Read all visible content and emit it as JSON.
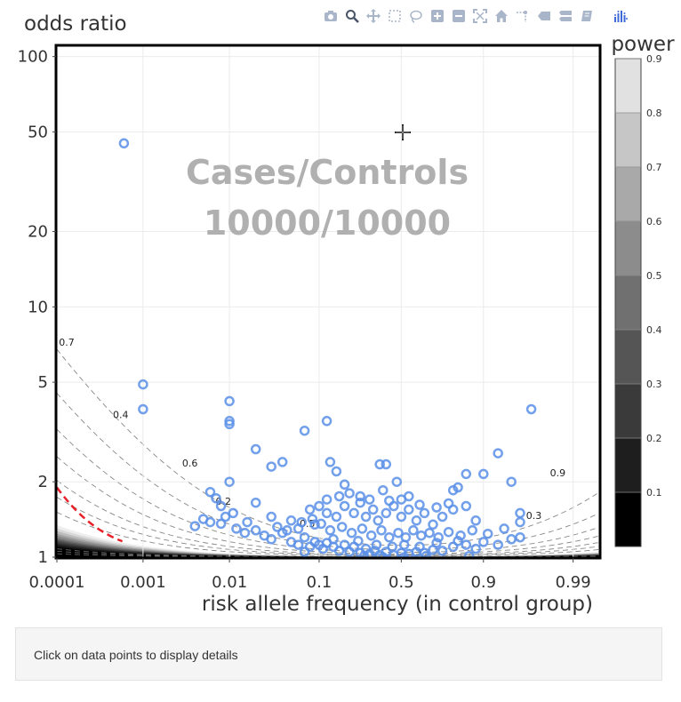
{
  "chart_data": {
    "type": "scatter",
    "title": "",
    "annotation_lines": [
      "Cases/Controls",
      "10000/10000"
    ],
    "xlabel": "risk allele frequency (in control group)",
    "ylabel": "odds ratio",
    "x_scale": "logit",
    "y_scale": "log",
    "x_ticks": [
      0.0001,
      0.001,
      0.01,
      0.1,
      0.5,
      0.9,
      0.99
    ],
    "x_tick_labels": [
      "0.0001",
      "0.001",
      "0.01",
      "0.1",
      "0.5",
      "0.9",
      "0.99"
    ],
    "y_ticks": [
      1,
      2,
      5,
      10,
      20,
      50,
      100
    ],
    "y_tick_labels": [
      "1",
      "2",
      "5",
      "10",
      "20",
      "50",
      "100"
    ],
    "xlim": [
      0.0001,
      0.995
    ],
    "ylim": [
      1,
      110
    ],
    "grid": true,
    "colorbar": {
      "title": "power",
      "ticks": [
        0.1,
        0.2,
        0.3,
        0.4,
        0.5,
        0.6,
        0.7,
        0.8,
        0.9
      ],
      "tick_labels": [
        "0.1",
        "0.2",
        "0.3",
        "0.4",
        "0.5",
        "0.6",
        "0.7",
        "0.8",
        "0.9"
      ]
    },
    "contour_labels": [
      {
        "text": "0.7",
        "x": 0.00013,
        "y": 7.0
      },
      {
        "text": "0.4",
        "x": 0.00055,
        "y": 3.6
      },
      {
        "text": "0.6",
        "x": 0.0035,
        "y": 2.3
      },
      {
        "text": "0.2",
        "x": 0.0085,
        "y": 1.62
      },
      {
        "text": "0.5",
        "x": 0.075,
        "y": 1.32
      },
      {
        "text": "0.9",
        "x": 0.985,
        "y": 2.1
      },
      {
        "text": "0.3",
        "x": 0.972,
        "y": 1.42
      }
    ],
    "reference_line": {
      "name": "",
      "color": "#e8202a"
    },
    "series": [
      {
        "name": "",
        "color": "#5b8fe8",
        "points": [
          [
            0.0006,
            45
          ],
          [
            0.001,
            4.9
          ],
          [
            0.001,
            3.9
          ],
          [
            0.01,
            4.2
          ],
          [
            0.01,
            3.5
          ],
          [
            0.01,
            3.4
          ],
          [
            0.01,
            2.0
          ],
          [
            0.02,
            2.7
          ],
          [
            0.03,
            2.3
          ],
          [
            0.04,
            2.4
          ],
          [
            0.07,
            3.2
          ],
          [
            0.12,
            3.5
          ],
          [
            0.13,
            2.4
          ],
          [
            0.15,
            2.2
          ],
          [
            0.18,
            1.95
          ],
          [
            0.36,
            2.35
          ],
          [
            0.4,
            2.35
          ],
          [
            0.47,
            2.0
          ],
          [
            0.38,
            1.85
          ],
          [
            0.55,
            1.75
          ],
          [
            0.25,
            1.75
          ],
          [
            0.2,
            1.8
          ],
          [
            0.97,
            3.9
          ],
          [
            0.93,
            2.6
          ],
          [
            0.85,
            2.15
          ],
          [
            0.82,
            1.9
          ],
          [
            0.8,
            1.85
          ],
          [
            0.9,
            2.15
          ],
          [
            0.95,
            2.0
          ],
          [
            0.96,
            1.5
          ],
          [
            0.96,
            1.38
          ],
          [
            0.006,
            1.82
          ],
          [
            0.007,
            1.72
          ],
          [
            0.008,
            1.6
          ],
          [
            0.011,
            1.5
          ],
          [
            0.02,
            1.65
          ],
          [
            0.005,
            1.42
          ],
          [
            0.006,
            1.38
          ],
          [
            0.008,
            1.36
          ],
          [
            0.012,
            1.3
          ],
          [
            0.015,
            1.25
          ],
          [
            0.02,
            1.28
          ],
          [
            0.025,
            1.22
          ],
          [
            0.03,
            1.18
          ],
          [
            0.04,
            1.25
          ],
          [
            0.05,
            1.15
          ],
          [
            0.06,
            1.12
          ],
          [
            0.07,
            1.2
          ],
          [
            0.08,
            1.1
          ],
          [
            0.09,
            1.15
          ],
          [
            0.1,
            1.12
          ],
          [
            0.11,
            1.08
          ],
          [
            0.12,
            1.14
          ],
          [
            0.14,
            1.1
          ],
          [
            0.16,
            1.06
          ],
          [
            0.18,
            1.12
          ],
          [
            0.2,
            1.05
          ],
          [
            0.22,
            1.1
          ],
          [
            0.25,
            1.04
          ],
          [
            0.28,
            1.08
          ],
          [
            0.3,
            1.03
          ],
          [
            0.33,
            1.06
          ],
          [
            0.36,
            1.02
          ],
          [
            0.4,
            1.05
          ],
          [
            0.45,
            1.02
          ],
          [
            0.5,
            1.04
          ],
          [
            0.55,
            1.03
          ],
          [
            0.6,
            1.05
          ],
          [
            0.65,
            1.04
          ],
          [
            0.7,
            1.07
          ],
          [
            0.75,
            1.06
          ],
          [
            0.8,
            1.1
          ],
          [
            0.85,
            1.12
          ],
          [
            0.88,
            1.08
          ],
          [
            0.9,
            1.15
          ],
          [
            0.93,
            1.12
          ],
          [
            0.95,
            1.18
          ],
          [
            0.96,
            1.2
          ],
          [
            0.03,
            1.45
          ],
          [
            0.05,
            1.4
          ],
          [
            0.08,
            1.55
          ],
          [
            0.1,
            1.6
          ],
          [
            0.12,
            1.5
          ],
          [
            0.15,
            1.45
          ],
          [
            0.18,
            1.6
          ],
          [
            0.22,
            1.5
          ],
          [
            0.25,
            1.65
          ],
          [
            0.28,
            1.45
          ],
          [
            0.32,
            1.55
          ],
          [
            0.35,
            1.4
          ],
          [
            0.4,
            1.5
          ],
          [
            0.45,
            1.6
          ],
          [
            0.5,
            1.45
          ],
          [
            0.55,
            1.55
          ],
          [
            0.6,
            1.4
          ],
          [
            0.65,
            1.5
          ],
          [
            0.7,
            1.35
          ],
          [
            0.75,
            1.45
          ],
          [
            0.8,
            1.55
          ],
          [
            0.85,
            1.6
          ],
          [
            0.88,
            1.4
          ],
          [
            0.06,
            1.3
          ],
          [
            0.09,
            1.35
          ],
          [
            0.13,
            1.28
          ],
          [
            0.17,
            1.32
          ],
          [
            0.21,
            1.25
          ],
          [
            0.26,
            1.3
          ],
          [
            0.31,
            1.22
          ],
          [
            0.37,
            1.28
          ],
          [
            0.42,
            1.2
          ],
          [
            0.48,
            1.25
          ],
          [
            0.53,
            1.2
          ],
          [
            0.58,
            1.28
          ],
          [
            0.63,
            1.22
          ],
          [
            0.68,
            1.25
          ],
          [
            0.73,
            1.2
          ],
          [
            0.78,
            1.26
          ],
          [
            0.83,
            1.22
          ],
          [
            0.87,
            1.28
          ],
          [
            0.91,
            1.24
          ],
          [
            0.94,
            1.3
          ],
          [
            0.12,
            1.7
          ],
          [
            0.16,
            1.75
          ],
          [
            0.3,
            1.7
          ],
          [
            0.42,
            1.68
          ],
          [
            0.5,
            1.7
          ],
          [
            0.62,
            1.62
          ],
          [
            0.72,
            1.58
          ],
          [
            0.78,
            1.64
          ],
          [
            0.14,
            1.18
          ],
          [
            0.24,
            1.16
          ],
          [
            0.34,
            1.12
          ],
          [
            0.44,
            1.1
          ],
          [
            0.52,
            1.12
          ],
          [
            0.62,
            1.1
          ],
          [
            0.72,
            1.14
          ],
          [
            0.82,
            1.16
          ],
          [
            0.07,
            1.05
          ],
          [
            0.27,
            1.01
          ],
          [
            0.38,
            1.0
          ],
          [
            0.52,
            1.0
          ],
          [
            0.66,
            1.01
          ],
          [
            0.86,
            1.01
          ],
          [
            0.004,
            1.33
          ],
          [
            0.009,
            1.45
          ],
          [
            0.016,
            1.38
          ],
          [
            0.035,
            1.32
          ],
          [
            0.045,
            1.28
          ],
          [
            0.065,
            1.38
          ],
          [
            0.085,
            1.42
          ],
          [
            0.105,
            1.36
          ]
        ]
      }
    ]
  }
}
